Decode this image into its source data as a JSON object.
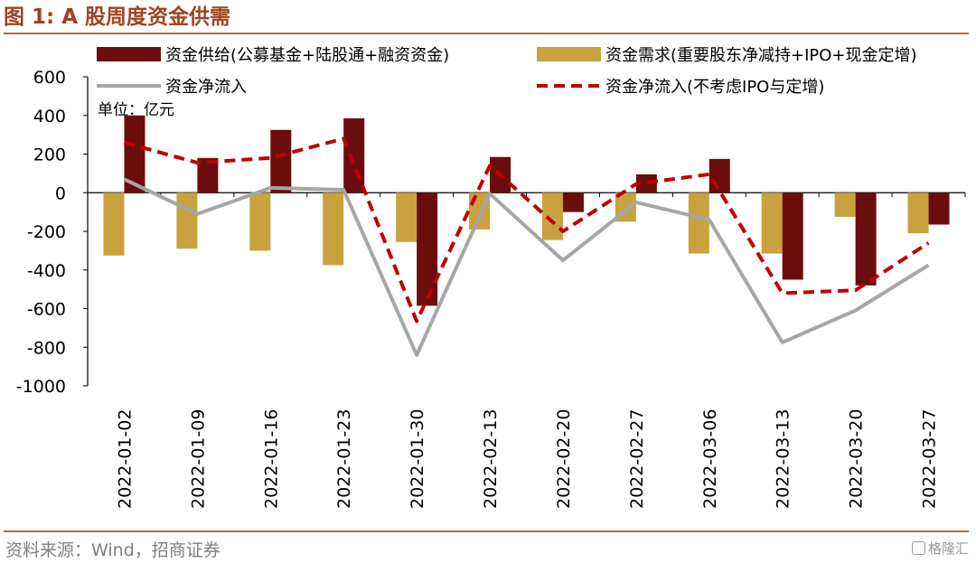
{
  "title": "图 1:  A 股周度资金供需",
  "source": "资料来源：Wind，招商证券",
  "watermark": "格隆汇",
  "chart_data": {
    "type": "bar",
    "unit_note": "单位：亿元",
    "ylim": [
      -1000,
      600
    ],
    "yticks": [
      600,
      400,
      200,
      0,
      -200,
      -400,
      -600,
      -800,
      -1000
    ],
    "categories": [
      "2022-01-02",
      "2022-01-09",
      "2022-01-16",
      "2022-01-23",
      "2022-01-30",
      "2022-02-13",
      "2022-02-20",
      "2022-02-27",
      "2022-03-06",
      "2022-03-13",
      "2022-03-20",
      "2022-03-27"
    ],
    "series": [
      {
        "name": "资金供给(公募基金+陆股通+融资资金)",
        "type": "bar",
        "color": "#6b0d0d",
        "values": [
          400,
          180,
          325,
          385,
          -585,
          185,
          -100,
          95,
          175,
          -450,
          -480,
          -165
        ]
      },
      {
        "name": "资金需求(重要股东净减持+IPO+现金定增)",
        "type": "bar",
        "color": "#c9a23f",
        "values": [
          -325,
          -290,
          -300,
          -375,
          -255,
          -190,
          -245,
          -150,
          -315,
          -315,
          -125,
          -210
        ]
      },
      {
        "name": "资金净流入",
        "type": "line",
        "color": "#a6a6a6",
        "style": "solid",
        "values": [
          70,
          -110,
          25,
          15,
          -840,
          -5,
          -350,
          -50,
          -140,
          -775,
          -610,
          -375
        ]
      },
      {
        "name": "资金净流入(不考虑IPO与定增)",
        "type": "line",
        "color": "#c00000",
        "style": "dashed",
        "values": [
          260,
          155,
          180,
          280,
          -665,
          140,
          -200,
          45,
          95,
          -520,
          -505,
          -260
        ]
      }
    ],
    "legend_placement": "top",
    "grid": false
  }
}
